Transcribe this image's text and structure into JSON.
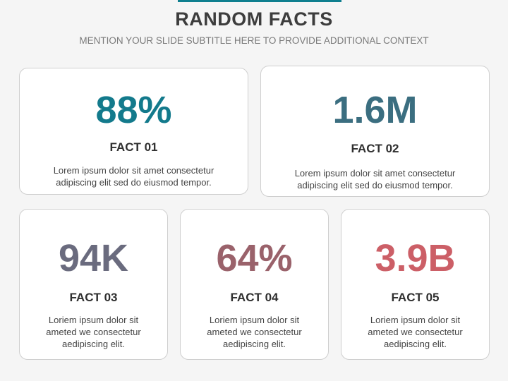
{
  "slide": {
    "title": "RANDOM FACTS",
    "subtitle": "MENTION YOUR SLIDE SUBTITLE HERE TO PROVIDE ADDITIONAL CONTEXT",
    "accent_bar_color": "#0f7f8f"
  },
  "facts": [
    {
      "value": "88%",
      "label": "FACT 01",
      "text": "Lorem ipsum dolor sit amet consectetur adipiscing elit sed do eiusmod tempor.",
      "color": "#137a8c"
    },
    {
      "value": "1.6M",
      "label": "FACT 02",
      "text": "Lorem ipsum dolor sit amet consectetur adipiscing elit sed do eiusmod tempor.",
      "color": "#3b6e80"
    },
    {
      "value": "94K",
      "label": "FACT 03",
      "text": "Loriem ipsum dolor sit ameted we consectetur aedipiscing elit.",
      "color": "#6a6b7e"
    },
    {
      "value": "64%",
      "label": "FACT 04",
      "text": "Loriem ipsum dolor sit ameted we consectetur aedipiscing elit.",
      "color": "#9a626b"
    },
    {
      "value": "3.9B",
      "label": "FACT 05",
      "text": "Loriem ipsum dolor sit ameted we consectetur aedipiscing elit.",
      "color": "#cc5f67"
    }
  ]
}
